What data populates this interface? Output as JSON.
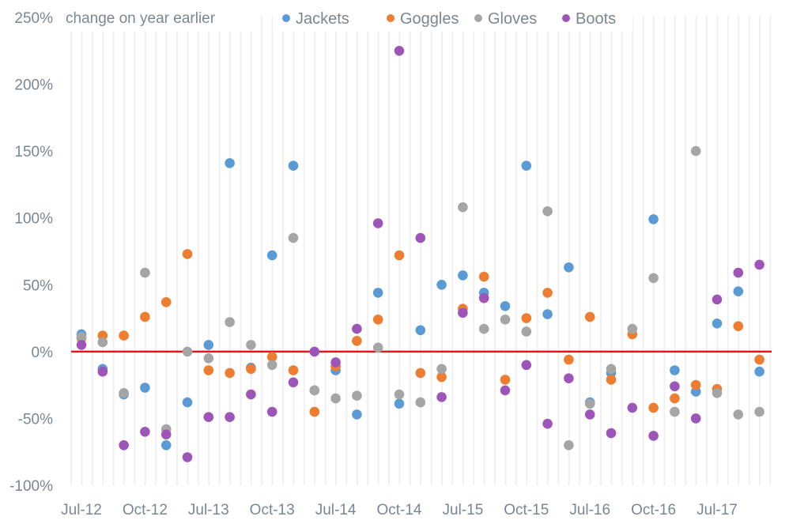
{
  "chart_data": {
    "type": "scatter",
    "title": "change on year earlier",
    "xlabel": "",
    "ylabel": "",
    "ylim": [
      -100,
      250
    ],
    "y_ticks": [
      "250%",
      "200%",
      "150%",
      "100%",
      "50%",
      "0%",
      "-50%",
      "-100%"
    ],
    "y_tick_values": [
      250,
      200,
      150,
      100,
      50,
      0,
      -50,
      -100
    ],
    "x_count": 33,
    "x_tick_labels": [
      {
        "index": 0,
        "label": "Jul-12"
      },
      {
        "index": 3,
        "label": "Oct-12"
      },
      {
        "index": 6,
        "label": "Jul-13"
      },
      {
        "index": 9,
        "label": "Oct-13"
      },
      {
        "index": 12,
        "label": "Jul-14"
      },
      {
        "index": 15,
        "label": "Oct-14"
      },
      {
        "index": 18,
        "label": "Jul-15"
      },
      {
        "index": 21,
        "label": "Oct-15"
      },
      {
        "index": 24,
        "label": "Jul-16"
      },
      {
        "index": 27,
        "label": "Oct-16"
      },
      {
        "index": 30,
        "label": "Jul-17"
      }
    ],
    "reference_line": {
      "value": 0,
      "color": "#e8141b"
    },
    "grid": "vertical",
    "legend_position": "top",
    "series": [
      {
        "name": "Jackets",
        "color": "#5b9bd5",
        "values": [
          13,
          -13,
          -32,
          -27,
          -70,
          -38,
          5,
          141,
          -12,
          72,
          139,
          -29,
          -14,
          -47,
          44,
          -39,
          16,
          50,
          57,
          44,
          34,
          139,
          28,
          63,
          -38,
          -16,
          null,
          99,
          -14,
          -30,
          21,
          45,
          -15
        ]
      },
      {
        "name": "Goggles",
        "color": "#ed7d31",
        "values": [
          10,
          12,
          12,
          26,
          37,
          73,
          -14,
          -16,
          -13,
          -4,
          -14,
          -45,
          -11,
          8,
          24,
          72,
          -16,
          -19,
          32,
          56,
          -21,
          25,
          44,
          -6,
          26,
          -21,
          13,
          -42,
          -35,
          -25,
          -28,
          19,
          -6
        ]
      },
      {
        "name": "Gloves",
        "color": "#a5a5a5",
        "values": [
          11,
          7,
          -31,
          59,
          -58,
          0,
          -5,
          22,
          5,
          -10,
          85,
          -29,
          -35,
          -33,
          3,
          -32,
          -38,
          -13,
          108,
          17,
          24,
          15,
          105,
          -70,
          -39,
          -13,
          17,
          55,
          -45,
          150,
          -31,
          -47,
          -45
        ]
      },
      {
        "name": "Boots",
        "color": "#9e55b8",
        "values": [
          5,
          -15,
          -70,
          -60,
          -62,
          -79,
          -49,
          -49,
          -32,
          -45,
          -23,
          0,
          -8,
          17,
          96,
          225,
          85,
          -34,
          29,
          40,
          -29,
          -10,
          -54,
          -20,
          -47,
          -61,
          -42,
          -63,
          -26,
          -50,
          39,
          59,
          65
        ]
      }
    ]
  }
}
